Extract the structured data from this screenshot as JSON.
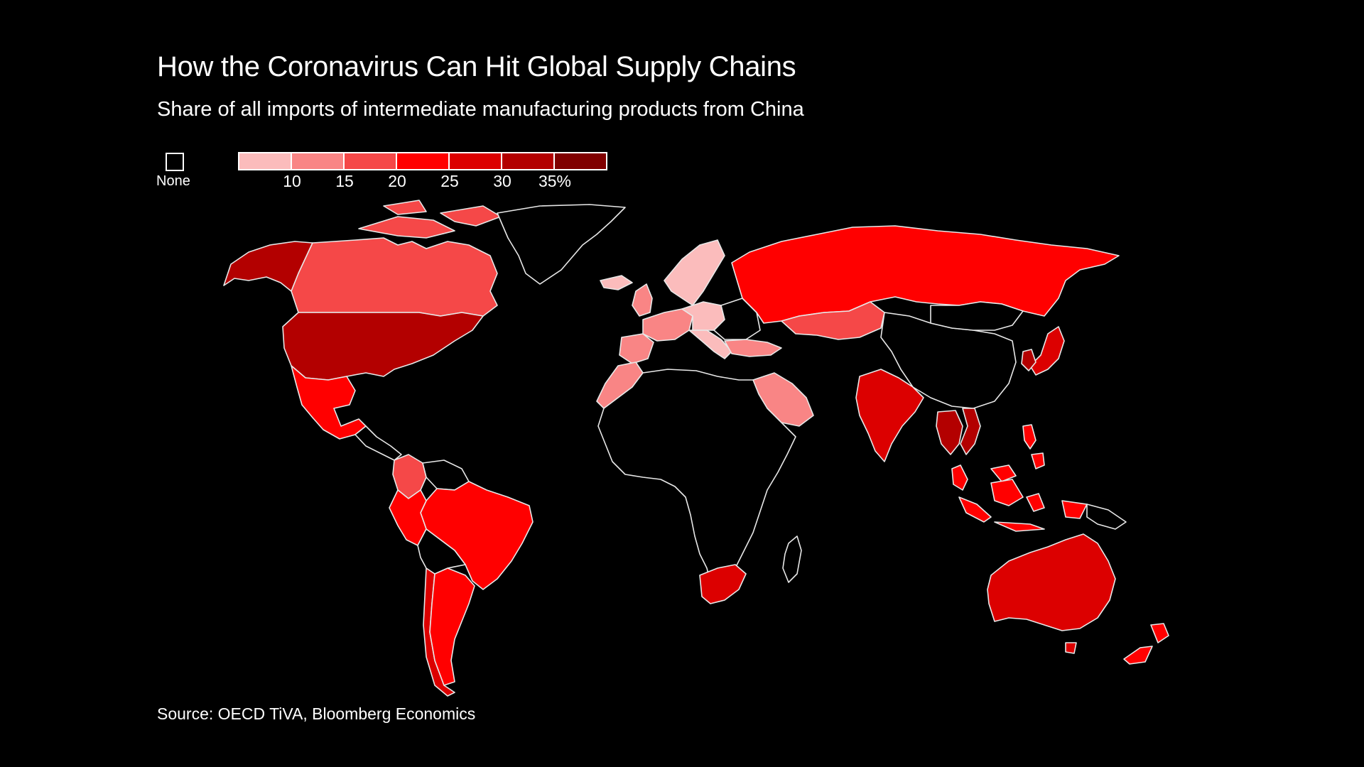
{
  "title": "How the Coronavirus Can Hit Global Supply Chains",
  "subtitle": "Share of all imports of intermediate manufacturing products from China",
  "source": "Source: OECD TiVA, Bloomberg Economics",
  "legend": {
    "none_label": "None",
    "bins": [
      {
        "color": "#fbbcbc"
      },
      {
        "color": "#f98585"
      },
      {
        "color": "#f54848"
      },
      {
        "color": "#ff0000"
      },
      {
        "color": "#dc0000"
      },
      {
        "color": "#b30000"
      },
      {
        "color": "#800000"
      }
    ],
    "ticks": [
      "10",
      "15",
      "20",
      "25",
      "30",
      "35%"
    ]
  },
  "colors": {
    "none": "#000000",
    "border": "#e8e8e8"
  },
  "regions": [
    {
      "name": "Alaska",
      "bin": 5
    },
    {
      "name": "Canada",
      "bin": 2
    },
    {
      "name": "Canadian Arctic Islands",
      "bin": 2
    },
    {
      "name": "Greenland",
      "bin": -1
    },
    {
      "name": "United States",
      "bin": 5
    },
    {
      "name": "Mexico",
      "bin": 3
    },
    {
      "name": "Central America",
      "bin": -1
    },
    {
      "name": "Colombia",
      "bin": 2
    },
    {
      "name": "Venezuela",
      "bin": -1
    },
    {
      "name": "Brazil",
      "bin": 3
    },
    {
      "name": "Peru",
      "bin": 3
    },
    {
      "name": "Chile",
      "bin": 4
    },
    {
      "name": "Argentina",
      "bin": 3
    },
    {
      "name": "Bolivia",
      "bin": -1
    },
    {
      "name": "Iceland",
      "bin": 0
    },
    {
      "name": "Scandinavia",
      "bin": 0
    },
    {
      "name": "United Kingdom",
      "bin": 1
    },
    {
      "name": "Western Europe",
      "bin": 1
    },
    {
      "name": "Central Europe",
      "bin": 0
    },
    {
      "name": "Eastern Europe",
      "bin": -1
    },
    {
      "name": "Iberia",
      "bin": 1
    },
    {
      "name": "Italy",
      "bin": 0
    },
    {
      "name": "Russia",
      "bin": 3
    },
    {
      "name": "Kazakhstan",
      "bin": 2
    },
    {
      "name": "Turkey",
      "bin": 1
    },
    {
      "name": "Saudi Arabia",
      "bin": 1
    },
    {
      "name": "Morocco",
      "bin": 1
    },
    {
      "name": "Africa",
      "bin": -1
    },
    {
      "name": "Madagascar",
      "bin": -1
    },
    {
      "name": "South Africa",
      "bin": 4
    },
    {
      "name": "India",
      "bin": 4
    },
    {
      "name": "China",
      "bin": -1
    },
    {
      "name": "Mongolia",
      "bin": -1
    },
    {
      "name": "Japan",
      "bin": 4
    },
    {
      "name": "South Korea",
      "bin": 5
    },
    {
      "name": "Vietnam",
      "bin": 5
    },
    {
      "name": "Thailand",
      "bin": 5
    },
    {
      "name": "Malaysia",
      "bin": 3
    },
    {
      "name": "Indonesia",
      "bin": 3
    },
    {
      "name": "Philippines",
      "bin": 3
    },
    {
      "name": "Papua New Guinea",
      "bin": -1
    },
    {
      "name": "Australia",
      "bin": 4
    },
    {
      "name": "New Zealand",
      "bin": 3
    }
  ]
}
